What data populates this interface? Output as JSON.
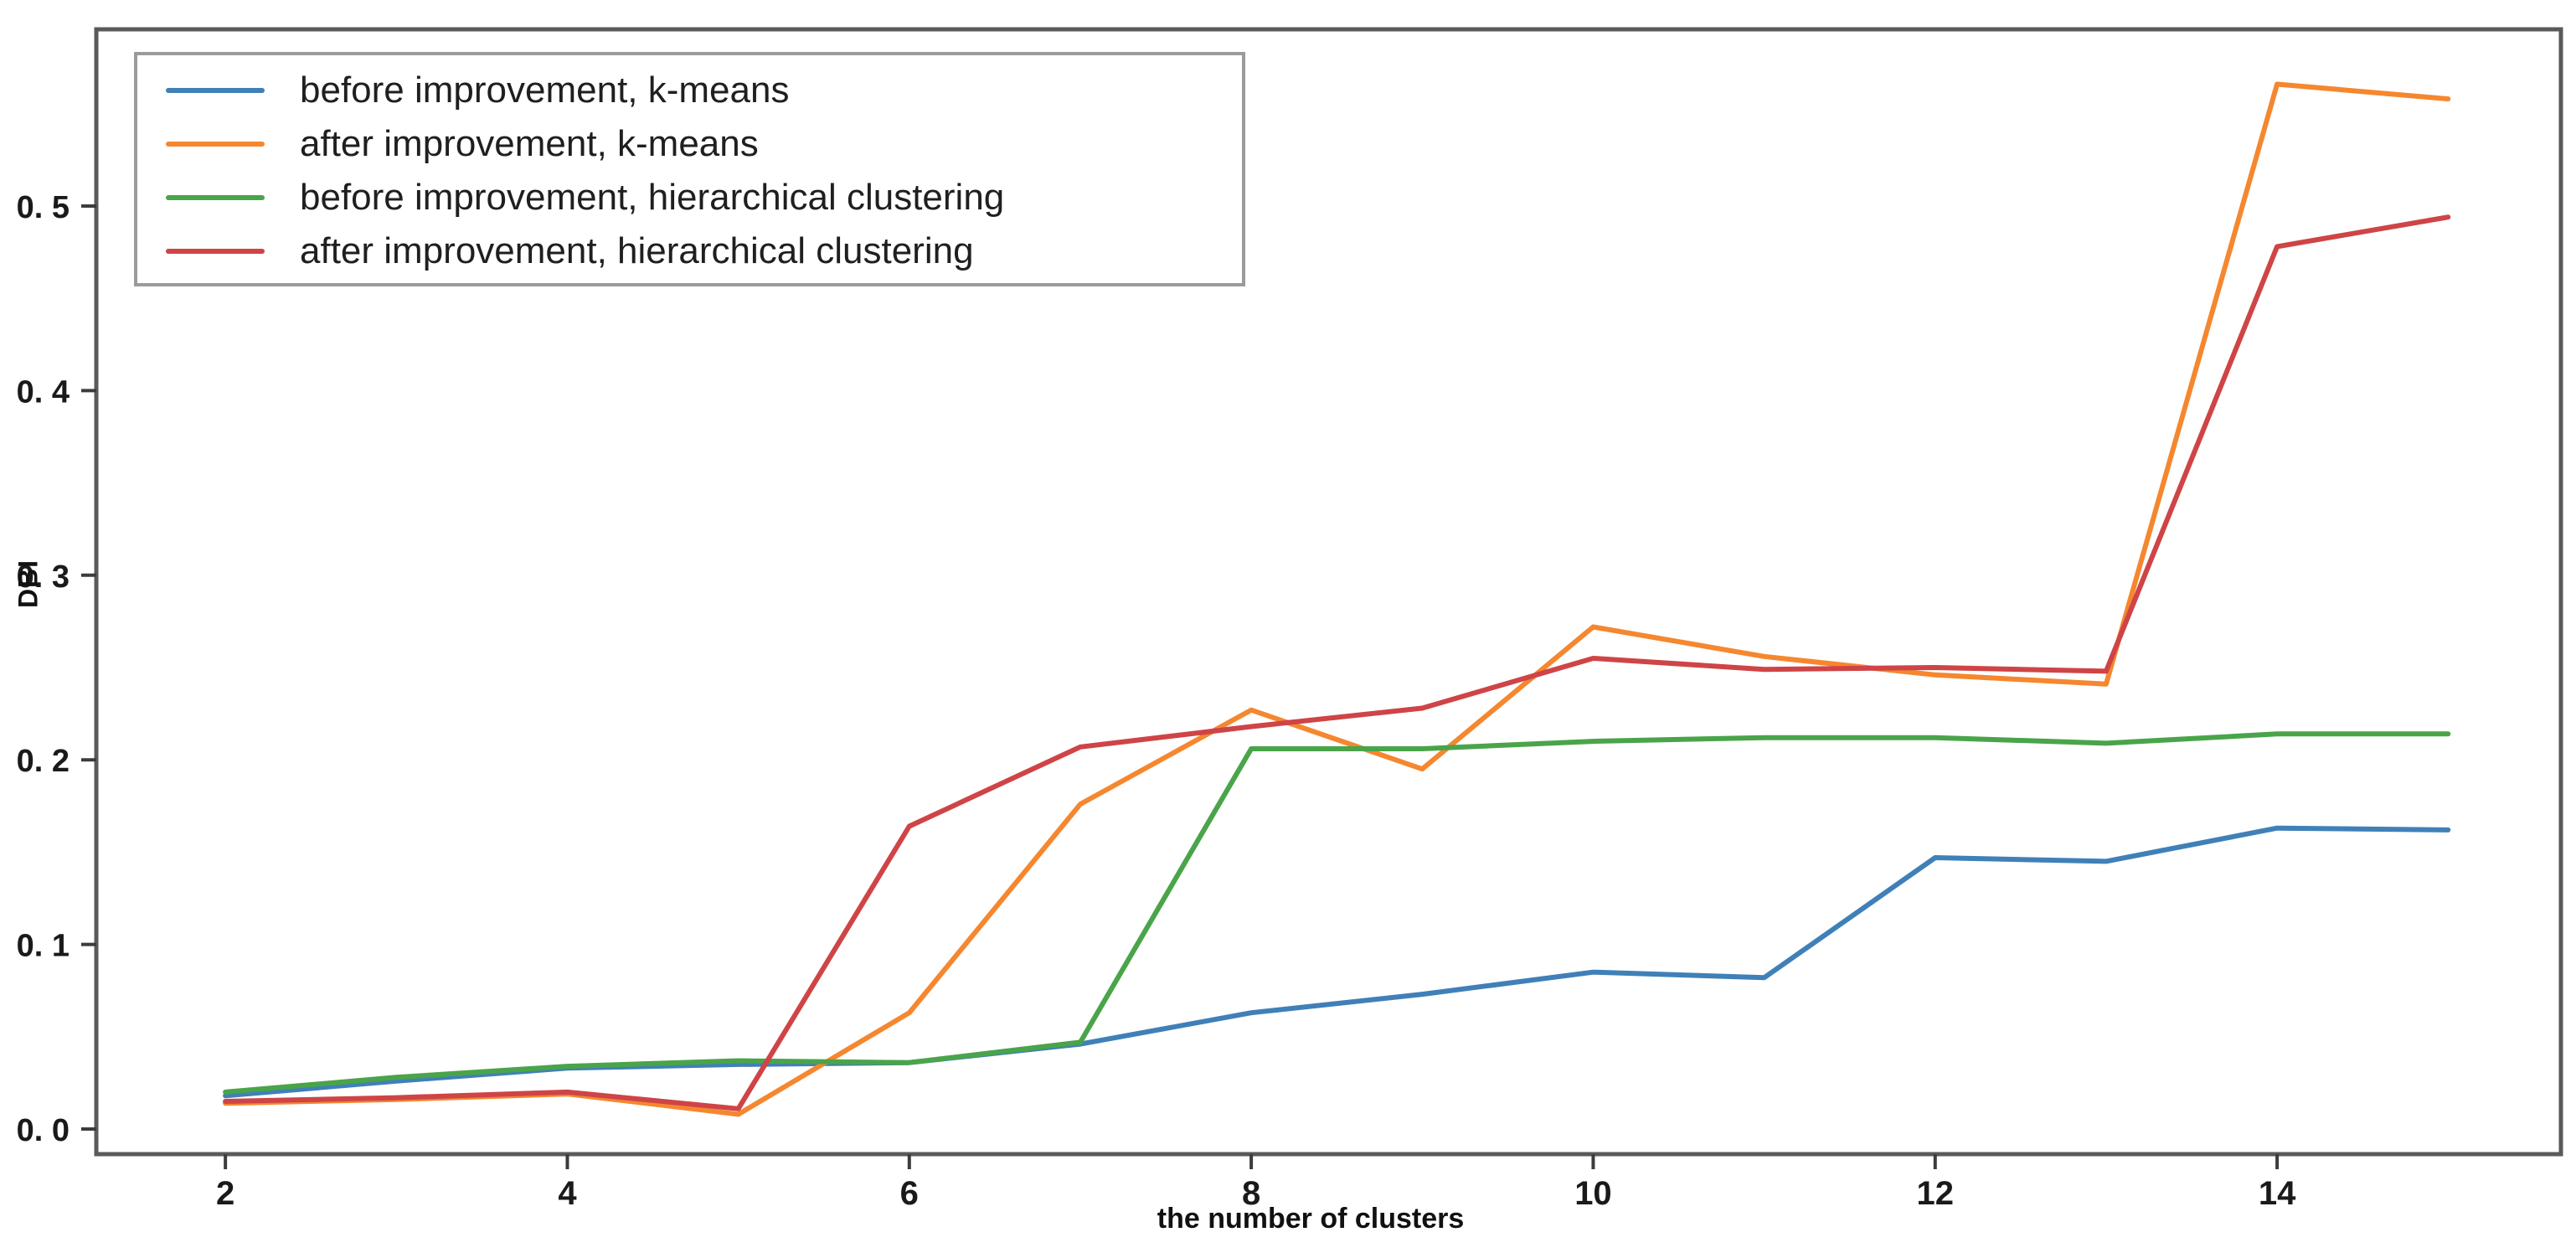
{
  "axes": {
    "frame_color": "#5a5a5a",
    "tick_color": "#3c3c3c",
    "tick_label_color": "#1a1a1a"
  },
  "chart_data": {
    "type": "line",
    "title": "",
    "xlabel": "the number of clusters",
    "ylabel": "DBI",
    "grid": false,
    "legend_position": "upper left",
    "xlim": [
      1.245,
      15.66
    ],
    "ylim": [
      -0.0136,
      0.5957
    ],
    "x_ticks": [
      2,
      4,
      6,
      8,
      10,
      12,
      14
    ],
    "x_tick_labels": [
      "2",
      "4",
      "6",
      "8",
      "10",
      "12",
      "14"
    ],
    "y_ticks": [
      0.0,
      0.1,
      0.2,
      0.3,
      0.4,
      0.5
    ],
    "y_tick_labels": [
      "0. 0",
      "0. 1",
      "0. 2",
      "0. 3",
      "0. 4",
      "0. 5"
    ],
    "x": [
      2,
      3,
      4,
      5,
      6,
      7,
      8,
      9,
      10,
      11,
      12,
      13,
      14,
      15
    ],
    "series": [
      {
        "name": "before improvement, k-means",
        "color": "#4080b8",
        "values": [
          0.018,
          0.026,
          0.033,
          0.035,
          0.036,
          0.046,
          0.063,
          0.073,
          0.085,
          0.082,
          0.147,
          0.145,
          0.163,
          0.162
        ]
      },
      {
        "name": "after improvement, k-means",
        "color": "#f5872f",
        "values": [
          0.014,
          0.016,
          0.019,
          0.008,
          0.063,
          0.176,
          0.227,
          0.195,
          0.272,
          0.256,
          0.246,
          0.241,
          0.566,
          0.558
        ]
      },
      {
        "name": "before improvement, hierarchical clustering",
        "color": "#4aa44a",
        "values": [
          0.02,
          0.028,
          0.034,
          0.037,
          0.036,
          0.047,
          0.206,
          0.206,
          0.21,
          0.212,
          0.212,
          0.209,
          0.214,
          0.214
        ]
      },
      {
        "name": "after improvement, hierarchical clustering",
        "color": "#cf4446",
        "values": [
          0.015,
          0.017,
          0.02,
          0.011,
          0.164,
          0.207,
          0.218,
          0.228,
          0.255,
          0.249,
          0.25,
          0.248,
          0.478,
          0.494
        ]
      }
    ]
  }
}
